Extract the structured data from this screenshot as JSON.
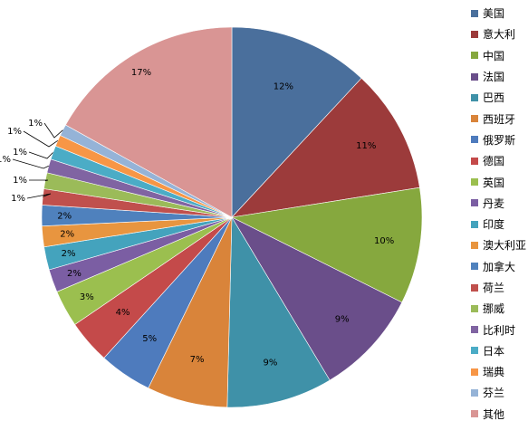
{
  "chart_data": {
    "type": "pie",
    "title": "",
    "legend_position": "right",
    "start": "12 o'clock, clockwise",
    "slices": [
      {
        "name": "美国",
        "value": 12.2,
        "label": "12%",
        "color": "#4a6f9c"
      },
      {
        "name": "意大利",
        "value": 10.8,
        "label": "11%",
        "color": "#9c3b3b"
      },
      {
        "name": "中国",
        "value": 10.1,
        "label": "10%",
        "color": "#86a83e"
      },
      {
        "name": "法国",
        "value": 9.2,
        "label": "9%",
        "color": "#6a4e8a"
      },
      {
        "name": "巴西",
        "value": 9.2,
        "label": "9%",
        "color": "#3f91a8"
      },
      {
        "name": "西班牙",
        "value": 7.0,
        "label": "7%",
        "color": "#d9843a"
      },
      {
        "name": "俄罗斯",
        "value": 4.6,
        "label": "5%",
        "color": "#4e7bbd"
      },
      {
        "name": "德国",
        "value": 3.8,
        "label": "4%",
        "color": "#c44a4a"
      },
      {
        "name": "英国",
        "value": 3.2,
        "label": "3%",
        "color": "#9bbf4f"
      },
      {
        "name": "丹麦",
        "value": 2.0,
        "label": "2%",
        "color": "#7b5ea3"
      },
      {
        "name": "印度",
        "value": 2.0,
        "label": "2%",
        "color": "#44a3bd"
      },
      {
        "name": "澳大利亚",
        "value": 1.8,
        "label": "2%",
        "color": "#e8953f"
      },
      {
        "name": "加拿大",
        "value": 1.8,
        "label": "2%",
        "color": "#4f81bd"
      },
      {
        "name": "荷兰",
        "value": 1.4,
        "label": "1%",
        "color": "#c0504d"
      },
      {
        "name": "挪威",
        "value": 1.4,
        "label": "1%",
        "color": "#9bbb59"
      },
      {
        "name": "比利时",
        "value": 1.2,
        "label": "1%",
        "color": "#8064a2"
      },
      {
        "name": "日本",
        "value": 1.2,
        "label": "1%",
        "color": "#4bacc6"
      },
      {
        "name": "瑞典",
        "value": 1.0,
        "label": "1%",
        "color": "#f79646"
      },
      {
        "name": "芬兰",
        "value": 1.0,
        "label": "1%",
        "color": "#95b3d7"
      },
      {
        "name": "其他",
        "value": 17.3,
        "label": "17%",
        "color": "#d99594"
      }
    ]
  }
}
